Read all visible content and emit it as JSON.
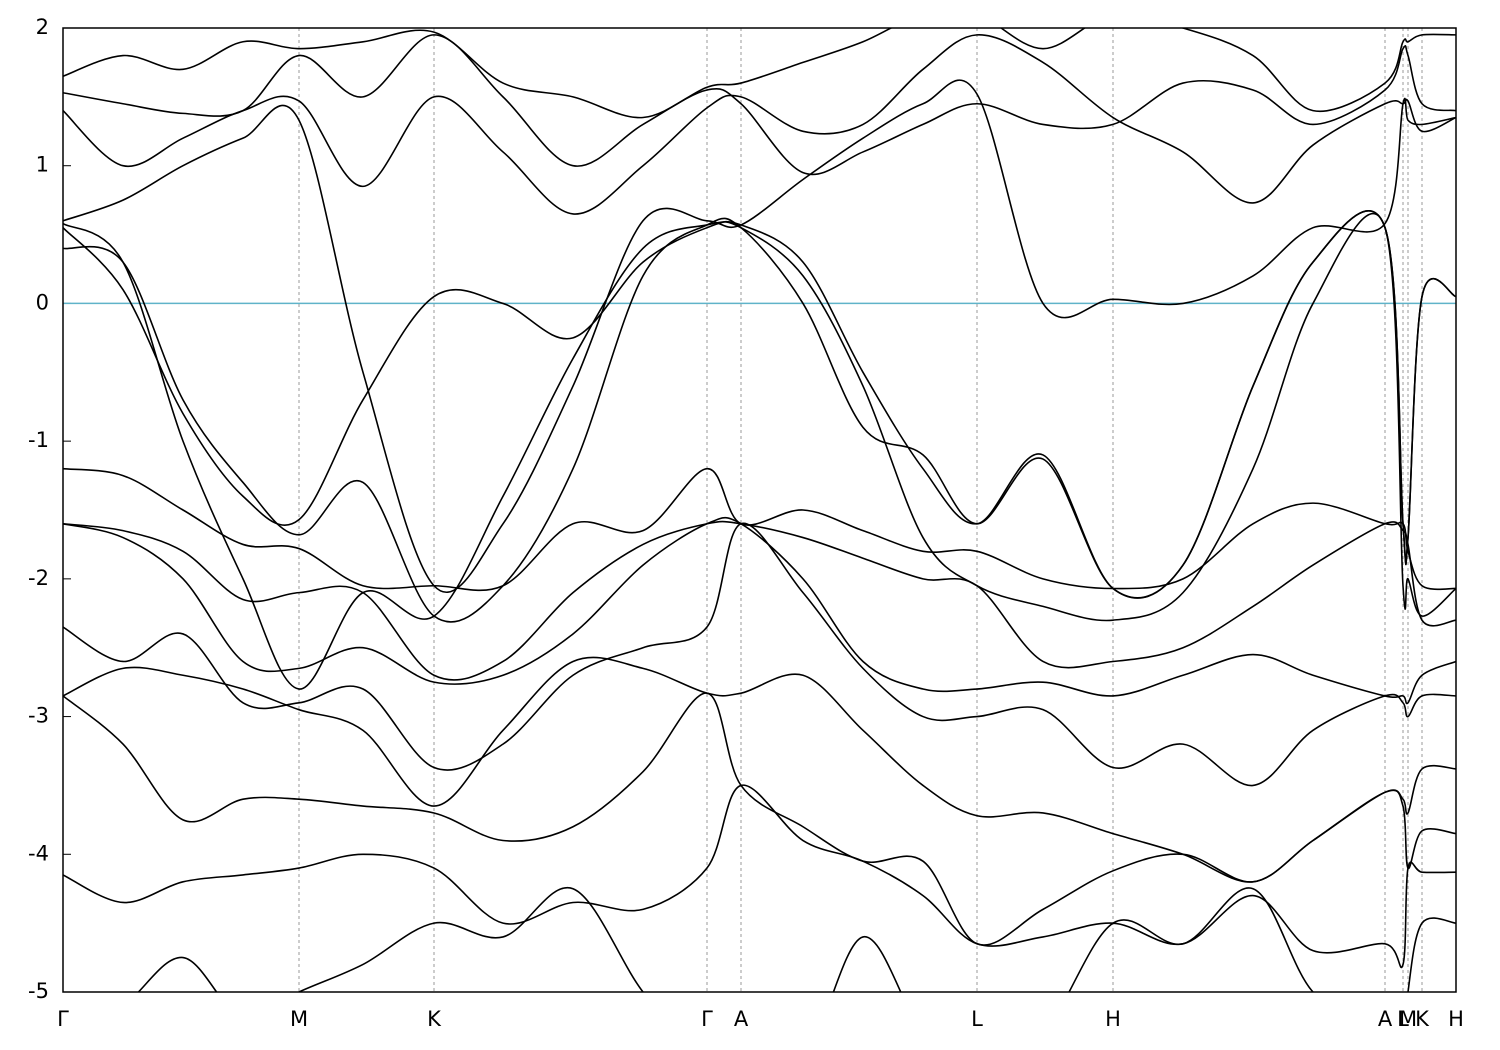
{
  "chart_data": {
    "type": "line",
    "x": [
      0,
      0.6,
      1.2,
      1.8,
      2.36,
      3.0,
      3.71,
      4.4,
      5.1,
      5.8,
      6.44,
      6.78,
      7.4,
      8.0,
      8.6,
      9.14,
      9.8,
      10.5,
      11.2,
      11.9,
      12.5,
      13.22,
      13.4,
      13.45,
      13.59,
      13.93
    ],
    "xlim": [
      0,
      13.93
    ],
    "xticks": [
      {
        "value": 0,
        "label": "Γ"
      },
      {
        "value": 2.36,
        "label": "M"
      },
      {
        "value": 3.71,
        "label": "K"
      },
      {
        "value": 6.44,
        "label": "Γ"
      },
      {
        "value": 6.78,
        "label": "A"
      },
      {
        "value": 9.14,
        "label": "L"
      },
      {
        "value": 10.5,
        "label": "H"
      },
      {
        "value": 13.22,
        "label": "A"
      },
      {
        "value": 13.4,
        "label": "L"
      },
      {
        "value": 13.45,
        "label": "M"
      },
      {
        "value": 13.59,
        "label": "K"
      },
      {
        "value": 13.93,
        "label": "H"
      }
    ],
    "ylim": [
      -5,
      2
    ],
    "yticks": [
      -5,
      -4,
      -3,
      -2,
      -1,
      0,
      1,
      2
    ],
    "xgrid": true,
    "line_color": "#000000",
    "reference_line": {
      "value": 0,
      "color": "#5fb3c9"
    },
    "series": [
      {
        "values": [
          0.55,
          0.1,
          -0.8,
          -1.4,
          -1.57,
          -0.7,
          0.05,
          0.0,
          -0.25,
          0.3,
          0.55,
          0.57,
          0.3,
          -0.5,
          -1.2,
          -1.6,
          -1.1,
          -2.07,
          -1.9,
          -0.6,
          0.3,
          0.55,
          -1.6,
          -1.7,
          0.05,
          0.05
        ]
      },
      {
        "values": [
          0.58,
          0.3,
          -1.0,
          -2.0,
          -2.8,
          -2.1,
          -2.27,
          -1.4,
          -0.4,
          0.4,
          0.57,
          0.55,
          0.2,
          -0.6,
          -1.7,
          -2.05,
          -2.2,
          -2.3,
          -2.1,
          -1.2,
          0.0,
          0.55,
          -2.05,
          -2.0,
          -2.27,
          -2.07
        ]
      },
      {
        "values": [
          0.6,
          0.75,
          1.0,
          1.2,
          1.33,
          -0.5,
          -2.05,
          -1.6,
          -0.6,
          0.6,
          0.6,
          0.57,
          0.9,
          1.2,
          1.45,
          1.52,
          0.0,
          0.03,
          0.0,
          0.2,
          0.55,
          0.58,
          1.45,
          1.33,
          1.3,
          1.35
        ]
      },
      {
        "values": [
          0.4,
          0.3,
          -0.7,
          -1.3,
          -1.68,
          -1.3,
          -2.27,
          -2.05,
          -1.2,
          0.2,
          0.57,
          0.55,
          0.0,
          -0.9,
          -1.1,
          -1.6,
          -1.13,
          -2.07,
          -1.9,
          -0.6,
          0.3,
          0.55,
          -1.6,
          -1.7,
          0.05,
          0.05
        ]
      },
      {
        "values": [
          -1.2,
          -1.25,
          -1.5,
          -1.75,
          -1.78,
          -2.05,
          -2.05,
          -2.05,
          -1.6,
          -1.65,
          -1.2,
          -1.6,
          -1.5,
          -1.65,
          -1.8,
          -1.8,
          -2.0,
          -2.07,
          -2.0,
          -1.6,
          -1.45,
          -1.6,
          -1.6,
          -1.8,
          -2.05,
          -2.07
        ]
      },
      {
        "values": [
          -1.6,
          -1.65,
          -1.8,
          -2.15,
          -2.1,
          -2.1,
          -2.7,
          -2.6,
          -2.1,
          -1.75,
          -1.6,
          -1.6,
          -1.7,
          -1.85,
          -2.0,
          -2.05,
          -2.6,
          -2.6,
          -2.5,
          -2.2,
          -1.9,
          -1.6,
          -1.65,
          -1.75,
          -2.3,
          -2.3
        ]
      },
      {
        "values": [
          -1.6,
          -1.7,
          -2.0,
          -2.6,
          -2.65,
          -2.5,
          -2.75,
          -2.7,
          -2.4,
          -1.9,
          -1.6,
          -1.6,
          -2.0,
          -2.6,
          -2.8,
          -2.8,
          -2.75,
          -2.85,
          -2.7,
          -2.55,
          -2.7,
          -2.85,
          -2.85,
          -2.9,
          -2.7,
          -2.6
        ]
      },
      {
        "values": [
          -2.35,
          -2.6,
          -2.4,
          -2.9,
          -2.9,
          -2.8,
          -3.37,
          -3.2,
          -2.7,
          -2.5,
          -2.35,
          -1.6,
          -2.1,
          -2.65,
          -3.0,
          -3.0,
          -2.95,
          -3.37,
          -3.2,
          -3.5,
          -3.1,
          -2.85,
          -2.9,
          -3.0,
          -2.85,
          -2.85
        ]
      },
      {
        "values": [
          -2.85,
          -2.65,
          -2.7,
          -2.8,
          -2.95,
          -3.1,
          -3.65,
          -3.1,
          -2.6,
          -2.65,
          -2.83,
          -2.83,
          -2.7,
          -3.1,
          -3.5,
          -3.72,
          -3.7,
          -3.85,
          -4.0,
          -4.2,
          -3.9,
          -3.55,
          -3.6,
          -3.7,
          -3.38,
          -3.38
        ]
      },
      {
        "values": [
          -2.85,
          -3.2,
          -3.75,
          -3.6,
          -3.6,
          -3.65,
          -3.7,
          -3.9,
          -3.8,
          -3.4,
          -2.83,
          -3.5,
          -3.8,
          -4.05,
          -4.05,
          -4.65,
          -4.4,
          -4.12,
          -4.0,
          -4.2,
          -3.9,
          -3.55,
          -3.65,
          -4.1,
          -3.83,
          -3.85
        ]
      },
      {
        "values": [
          -4.15,
          -4.35,
          -4.2,
          -4.15,
          -4.1,
          -4.0,
          -4.1,
          -4.5,
          -4.35,
          -4.4,
          -4.1,
          -3.5,
          -3.9,
          -4.05,
          -4.3,
          -4.65,
          -4.6,
          -4.5,
          -4.65,
          -4.3,
          -4.7,
          -4.65,
          -4.8,
          -4.1,
          -4.13,
          -4.13
        ]
      },
      {
        "values": [
          -5.3,
          -5.1,
          -4.75,
          -5.2,
          -5.0,
          -4.8,
          -4.5,
          -4.6,
          -4.25,
          -5.0,
          -5.5,
          -5.5,
          -5.5,
          -4.6,
          -5.3,
          -5.5,
          -5.3,
          -4.5,
          -4.65,
          -4.25,
          -5.0,
          -5.3,
          -5.5,
          -5.0,
          -4.5,
          -4.5
        ]
      },
      {
        "values": [
          1.4,
          1.0,
          1.2,
          1.4,
          1.47,
          0.85,
          1.5,
          1.1,
          0.65,
          1.0,
          1.42,
          1.5,
          1.25,
          1.3,
          1.7,
          1.95,
          1.75,
          1.35,
          1.1,
          0.73,
          1.15,
          1.45,
          1.45,
          1.47,
          1.25,
          1.35
        ]
      },
      {
        "values": [
          1.53,
          1.45,
          1.38,
          1.4,
          1.8,
          1.5,
          1.95,
          1.5,
          1.0,
          1.3,
          1.55,
          1.45,
          0.95,
          1.1,
          1.3,
          1.45,
          1.3,
          1.3,
          1.6,
          1.55,
          1.3,
          1.55,
          1.85,
          1.8,
          1.45,
          1.4
        ]
      },
      {
        "values": [
          1.65,
          1.8,
          1.7,
          1.9,
          1.85,
          1.9,
          1.97,
          1.6,
          1.5,
          1.35,
          1.57,
          1.6,
          1.75,
          1.9,
          2.1,
          2.1,
          1.85,
          2.1,
          2.0,
          1.8,
          1.4,
          1.6,
          1.9,
          1.9,
          1.95,
          1.95
        ]
      }
    ]
  }
}
